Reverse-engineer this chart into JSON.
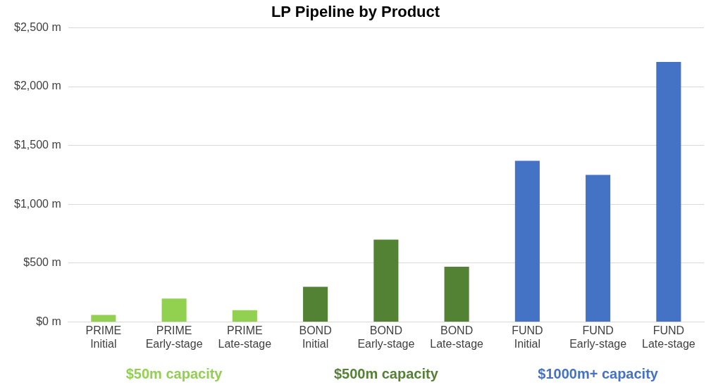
{
  "chart_data": {
    "type": "bar",
    "title": "LP Pipeline by Product",
    "categories": [
      "PRIME\nInitial",
      "PRIME\nEarly-stage",
      "PRIME\nLate-stage",
      "BOND\nInitial",
      "BOND\nEarly-stage",
      "BOND\nLate-stage",
      "FUND\nInitial",
      "FUND\nEarly-stage",
      "FUND\nLate-stage"
    ],
    "values": [
      60,
      200,
      100,
      300,
      700,
      470,
      1370,
      1250,
      2210
    ],
    "colors": [
      "#92d050",
      "#92d050",
      "#92d050",
      "#548235",
      "#548235",
      "#548235",
      "#4472c4",
      "#4472c4",
      "#4472c4"
    ],
    "ylim": [
      0,
      2500
    ],
    "yticks": [
      {
        "value": 0,
        "label": "$0 m"
      },
      {
        "value": 500,
        "label": "$500 m"
      },
      {
        "value": 1000,
        "label": "$1,000 m"
      },
      {
        "value": 1500,
        "label": "$1,500 m"
      },
      {
        "value": 2000,
        "label": "$2,000 m"
      },
      {
        "value": 2500,
        "label": "$2,500 m"
      }
    ],
    "grid": "y",
    "legend": false,
    "annotations": [
      "$50m capacity",
      "$500m capacity",
      "$1000m+ capacity"
    ]
  }
}
